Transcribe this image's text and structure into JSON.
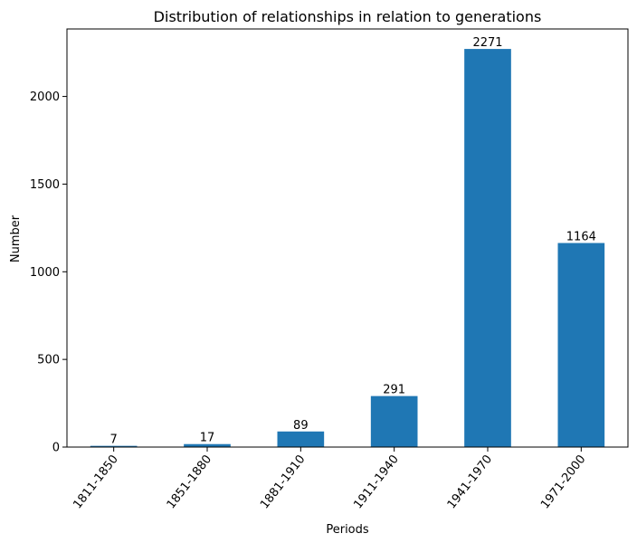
{
  "chart_data": {
    "type": "bar",
    "title": "Distribution of relationships in relation to generations",
    "xlabel": "Periods",
    "ylabel": "Number",
    "categories": [
      "1811-1850",
      "1851-1880",
      "1881-1910",
      "1911-1940",
      "1941-1970",
      "1971-2000"
    ],
    "values": [
      7,
      17,
      89,
      291,
      2271,
      1164
    ],
    "data_labels": [
      "7",
      "17",
      "89",
      "291",
      "2271",
      "1164"
    ],
    "y_ticks": [
      0,
      500,
      1000,
      1500,
      2000
    ],
    "y_tick_labels": [
      "0",
      "500",
      "1000",
      "1500",
      "2000"
    ],
    "ylim": [
      0,
      2385
    ],
    "bar_color": "#1f77b4",
    "grid": false,
    "legend": "none"
  }
}
